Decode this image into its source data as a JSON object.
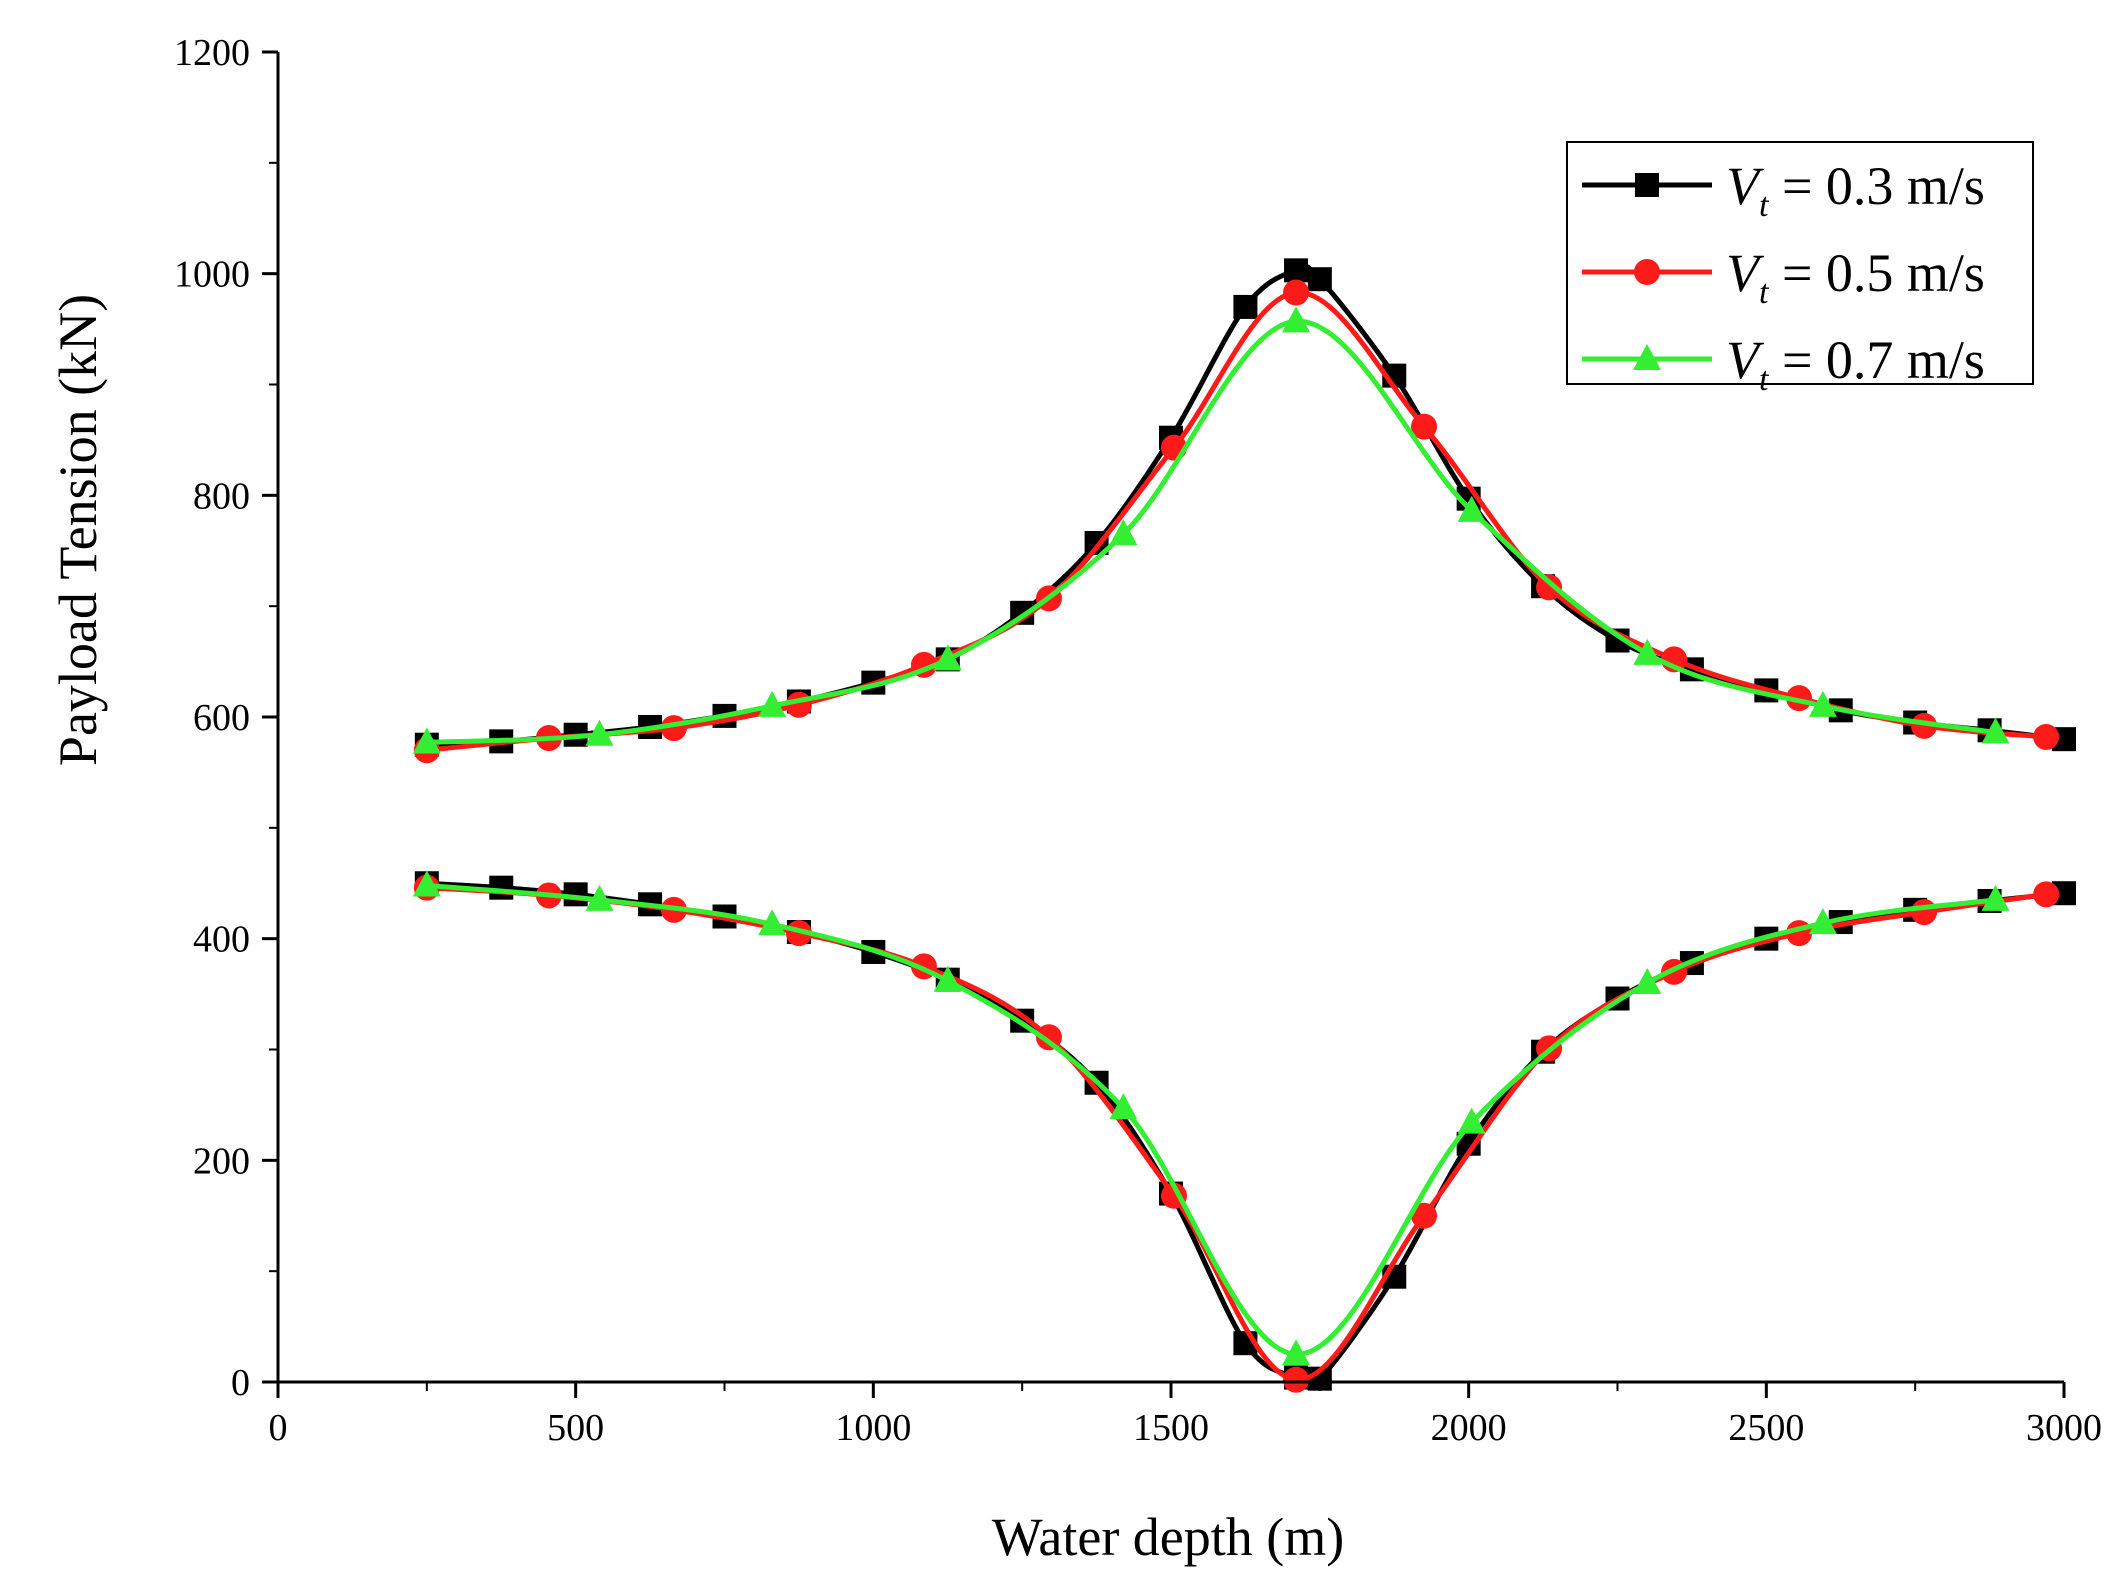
{
  "chart_data": {
    "type": "line",
    "title": "",
    "xlabel": "Water depth (m)",
    "ylabel": "Payload Tension (kN)",
    "xlim": [
      0,
      3000
    ],
    "ylim": [
      0,
      1200
    ],
    "xticks": [
      0,
      500,
      1000,
      1500,
      2000,
      2500,
      3000
    ],
    "yticks": [
      0,
      200,
      400,
      600,
      800,
      1000,
      1200
    ],
    "xtick_labels": [
      "0",
      "500",
      "1000",
      "1500",
      "2000",
      "2500",
      "3000"
    ],
    "ytick_labels": [
      "0",
      "200",
      "400",
      "600",
      "800",
      "1000",
      "1200"
    ],
    "grid": false,
    "legend_position": "top-right",
    "series": [
      {
        "name": "V_t = 0.3 m/s",
        "legend": {
          "symbol": "V",
          "subscript": "t",
          "text": " = 0.3 m/s"
        },
        "color": "#000000",
        "marker": "square",
        "upper": [
          [
            250,
            575
          ],
          [
            375,
            578
          ],
          [
            500,
            584
          ],
          [
            625,
            591
          ],
          [
            750,
            601
          ],
          [
            875,
            614
          ],
          [
            1000,
            631
          ],
          [
            1125,
            652
          ],
          [
            1250,
            694
          ],
          [
            1375,
            757
          ],
          [
            1500,
            852
          ],
          [
            1625,
            970
          ],
          [
            1710,
            1003
          ],
          [
            1750,
            995
          ],
          [
            1875,
            908
          ],
          [
            2000,
            797
          ],
          [
            2125,
            718
          ],
          [
            2250,
            669
          ],
          [
            2375,
            643
          ],
          [
            2500,
            624
          ],
          [
            2625,
            606
          ],
          [
            2750,
            595
          ],
          [
            2875,
            588
          ],
          [
            3000,
            580
          ]
        ],
        "lower": [
          [
            250,
            450
          ],
          [
            375,
            446
          ],
          [
            500,
            440
          ],
          [
            625,
            431
          ],
          [
            750,
            420
          ],
          [
            875,
            406
          ],
          [
            1000,
            388
          ],
          [
            1125,
            363
          ],
          [
            1250,
            326
          ],
          [
            1375,
            270
          ],
          [
            1500,
            170
          ],
          [
            1625,
            35
          ],
          [
            1710,
            4
          ],
          [
            1750,
            3
          ],
          [
            1875,
            95
          ],
          [
            2000,
            215
          ],
          [
            2125,
            298
          ],
          [
            2250,
            346
          ],
          [
            2375,
            378
          ],
          [
            2500,
            400
          ],
          [
            2625,
            415
          ],
          [
            2750,
            426
          ],
          [
            2875,
            434
          ],
          [
            3000,
            441
          ]
        ]
      },
      {
        "name": "V_t = 0.5 m/s",
        "legend": {
          "symbol": "V",
          "subscript": "t",
          "text": " = 0.5 m/s"
        },
        "color": "#ff1a1a",
        "marker": "circle",
        "upper": [
          [
            250,
            570
          ],
          [
            455,
            581
          ],
          [
            665,
            590
          ],
          [
            875,
            611
          ],
          [
            1085,
            647
          ],
          [
            1295,
            707
          ],
          [
            1505,
            843
          ],
          [
            1710,
            983
          ],
          [
            1925,
            862
          ],
          [
            2135,
            717
          ],
          [
            2345,
            652
          ],
          [
            2555,
            617
          ],
          [
            2765,
            592
          ],
          [
            2970,
            582
          ]
        ],
        "lower": [
          [
            250,
            446
          ],
          [
            455,
            439
          ],
          [
            665,
            426
          ],
          [
            875,
            405
          ],
          [
            1085,
            375
          ],
          [
            1295,
            311
          ],
          [
            1505,
            168
          ],
          [
            1710,
            2
          ],
          [
            1925,
            150
          ],
          [
            2135,
            301
          ],
          [
            2345,
            370
          ],
          [
            2555,
            405
          ],
          [
            2765,
            424
          ],
          [
            2970,
            440
          ]
        ]
      },
      {
        "name": "V_t = 0.7 m/s",
        "legend": {
          "symbol": "V",
          "subscript": "t",
          "text": " = 0.7 m/s"
        },
        "color": "#33ee33",
        "marker": "triangle",
        "upper": [
          [
            250,
            577
          ],
          [
            540,
            584
          ],
          [
            830,
            610
          ],
          [
            1125,
            652
          ],
          [
            1420,
            765
          ],
          [
            1710,
            957
          ],
          [
            2005,
            786
          ],
          [
            2300,
            657
          ],
          [
            2595,
            610
          ],
          [
            2885,
            586
          ]
        ],
        "lower": [
          [
            250,
            448
          ],
          [
            540,
            435
          ],
          [
            830,
            413
          ],
          [
            1125,
            362
          ],
          [
            1420,
            247
          ],
          [
            1710,
            25
          ],
          [
            2005,
            234
          ],
          [
            2300,
            360
          ],
          [
            2595,
            414
          ],
          [
            2885,
            435
          ]
        ]
      }
    ]
  }
}
